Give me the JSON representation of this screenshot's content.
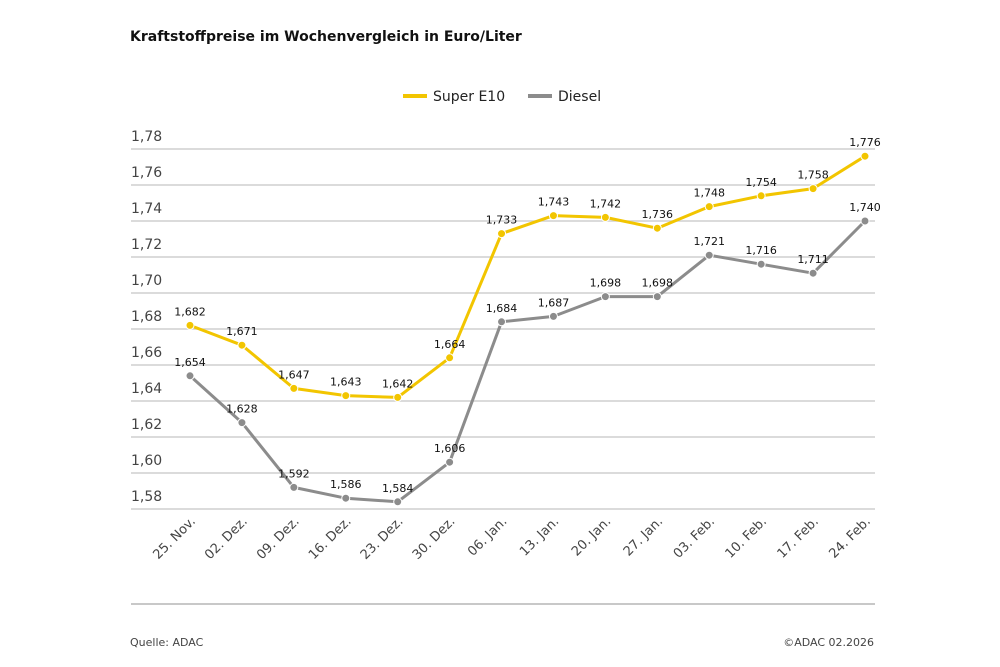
{
  "title": "Kraftstoffpreise im Wochenvergleich in Euro/Liter",
  "source": "Quelle: ADAC",
  "copyright": "©ADAC 02.2026",
  "chart_data": {
    "type": "line",
    "title": "Kraftstoffpreise im Wochenvergleich in Euro/Liter",
    "xlabel": "",
    "ylabel": "",
    "categories": [
      "25. Nov.",
      "02. Dez.",
      "09. Dez.",
      "16. Dez.",
      "23. Dez.",
      "30. Dez.",
      "06. Jan.",
      "13. Jan.",
      "20. Jan.",
      "27. Jan.",
      "03. Feb.",
      "10. Feb.",
      "17. Feb.",
      "24. Feb."
    ],
    "ylim": [
      1.58,
      1.78
    ],
    "yticks": [
      "1,58",
      "1,60",
      "1,62",
      "1,64",
      "1,66",
      "1,68",
      "1,70",
      "1,72",
      "1,74",
      "1,76",
      "1,78"
    ],
    "grid": true,
    "legend": "top-center",
    "series": [
      {
        "name": "Super E10",
        "color": "#f2c500",
        "values": [
          1.682,
          1.671,
          1.647,
          1.643,
          1.642,
          1.664,
          1.733,
          1.743,
          1.742,
          1.736,
          1.748,
          1.754,
          1.758,
          1.776
        ],
        "labels": [
          "1,682",
          "1,671",
          "1,647",
          "1,643",
          "1,642",
          "1,664",
          "1,733",
          "1,743",
          "1,742",
          "1,736",
          "1,748",
          "1,754",
          "1,758",
          "1,776"
        ]
      },
      {
        "name": "Diesel",
        "color": "#8c8c8c",
        "values": [
          1.654,
          1.628,
          1.592,
          1.586,
          1.584,
          1.606,
          1.684,
          1.687,
          1.698,
          1.698,
          1.721,
          1.716,
          1.711,
          1.74
        ],
        "labels": [
          "1,654",
          "1,628",
          "1,592",
          "1,586",
          "1,584",
          "1,606",
          "1,684",
          "1,687",
          "1,698",
          "1,698",
          "1,721",
          "1,716",
          "1,711",
          "1,740"
        ]
      }
    ]
  }
}
